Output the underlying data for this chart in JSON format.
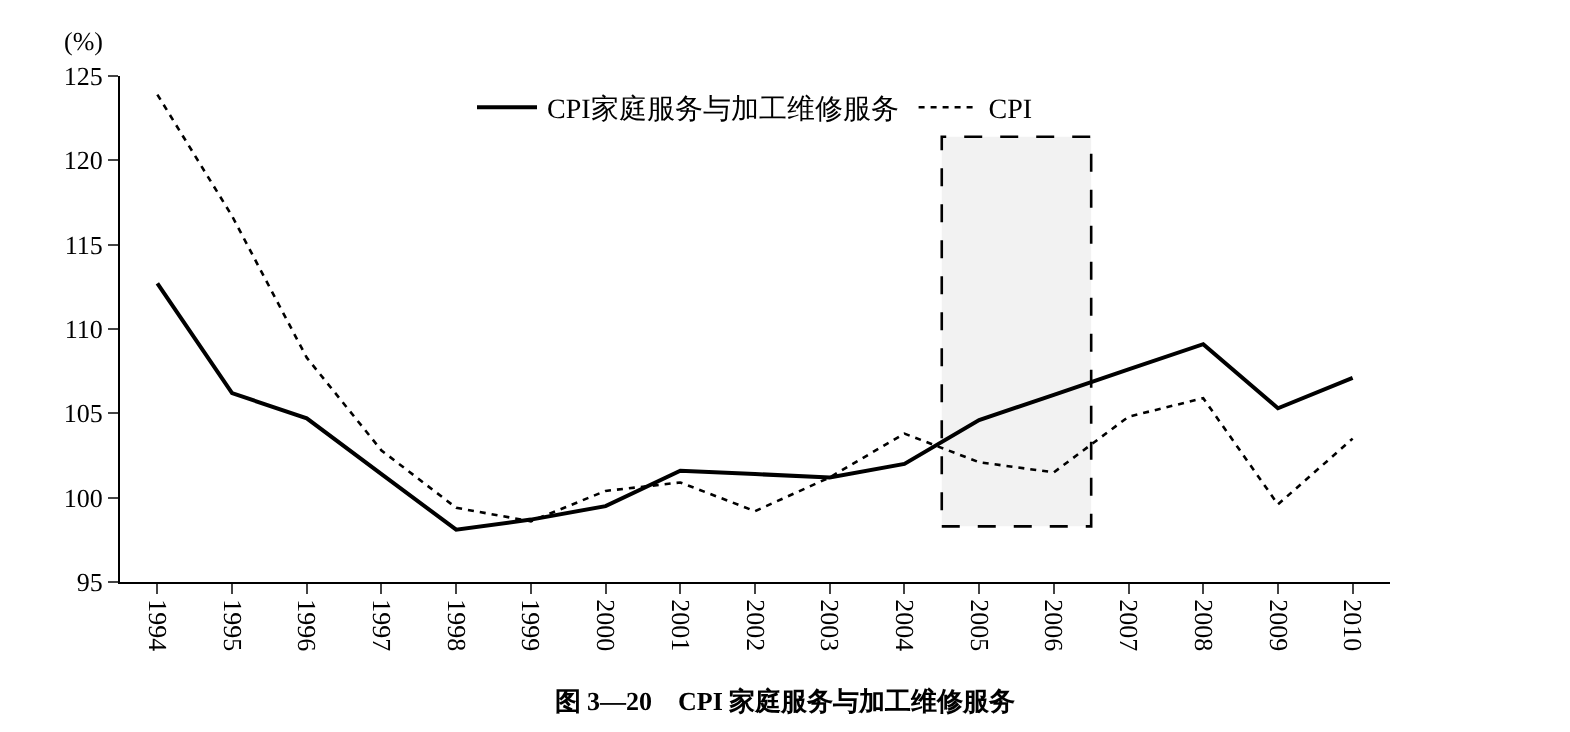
{
  "chart_data": {
    "type": "line",
    "title": "图 3—20　CPI 家庭服务与加工维修服务",
    "ylabel": "(%)",
    "categories": [
      "1994",
      "1995",
      "1996",
      "1997",
      "1998",
      "1999",
      "2000",
      "2001",
      "2002",
      "2003",
      "2004",
      "2005",
      "2006",
      "2007",
      "2008",
      "2009",
      "2010"
    ],
    "series": [
      {
        "name": "CPI家庭服务与加工维修服务",
        "color": "#000000",
        "line_style": "solid",
        "values": [
          112.7,
          106.2,
          104.7,
          101.4,
          98.1,
          98.7,
          99.5,
          101.6,
          101.4,
          101.2,
          102.0,
          104.6,
          106.1,
          107.6,
          109.1,
          105.3,
          107.1
        ]
      },
      {
        "name": "CPI",
        "color": "#000000",
        "line_style": "dotted",
        "values": [
          123.9,
          116.7,
          108.3,
          102.8,
          99.4,
          98.6,
          100.4,
          100.9,
          99.2,
          101.2,
          103.8,
          102.1,
          101.5,
          104.8,
          105.9,
          99.6,
          103.5
        ]
      }
    ],
    "bands": [
      {
        "axis": "x",
        "from": "2005",
        "to": "2006",
        "color": "#000000"
      }
    ],
    "ylim": [
      95,
      125
    ],
    "yticks": [
      95,
      100,
      105,
      110,
      115,
      120,
      125
    ],
    "legend": "top",
    "marker": "none"
  }
}
